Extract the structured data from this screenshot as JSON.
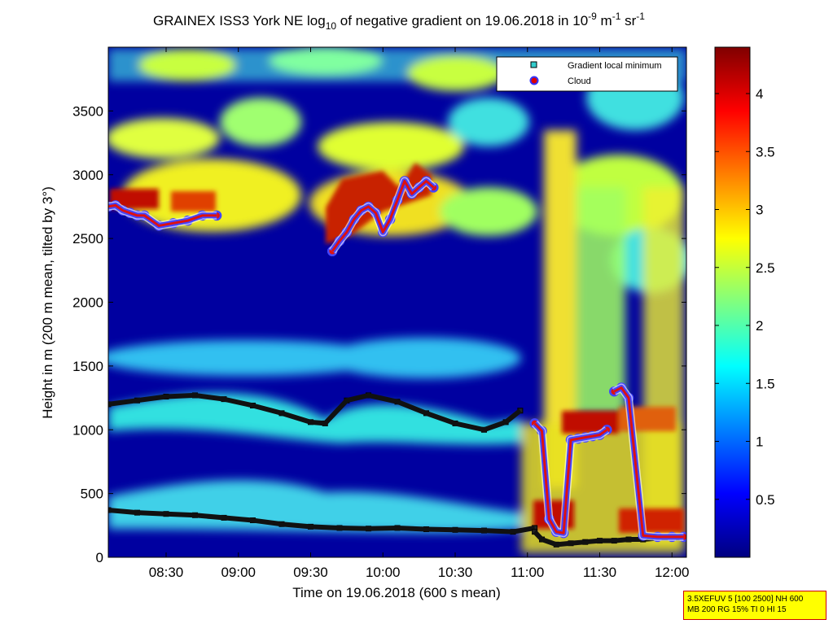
{
  "chart_data": {
    "type": "heatmap",
    "title": {
      "pre": "GRAINEX ISS3 York NE log",
      "sub": "10",
      "mid": " of negative gradient on 19.06.2018 in 10",
      "sup1": "-9",
      "unit1": " m",
      "sup2": "-1",
      "unit2": " sr",
      "sup3": "-1"
    },
    "xlabel": "Time on 19.06.2018 (600 s mean)",
    "ylabel": "Height in m (200 m mean, tilted by 3°)",
    "x_ticks": [
      "08:30",
      "09:00",
      "09:30",
      "10:00",
      "10:30",
      "11:00",
      "11:30",
      "12:00"
    ],
    "x_tick_hours": [
      8.5,
      9.0,
      9.5,
      10.0,
      10.5,
      11.0,
      11.5,
      12.0
    ],
    "xlim_hours": [
      8.1,
      12.1
    ],
    "y_ticks": [
      0,
      500,
      1000,
      1500,
      2000,
      2500,
      3000,
      3500
    ],
    "ylim": [
      0,
      4000
    ],
    "colorbar": {
      "ticks": [
        "0.5",
        "1",
        "1.5",
        "2",
        "2.5",
        "3",
        "3.5",
        "4"
      ],
      "tick_values": [
        0.5,
        1,
        1.5,
        2,
        2.5,
        3,
        3.5,
        4
      ],
      "range": [
        0,
        4.4
      ]
    },
    "legend": {
      "position": "top-right",
      "entries": [
        {
          "label": "Gradient local minimum",
          "marker": "square",
          "color": "#33cccc"
        },
        {
          "label": "Cloud",
          "marker": "circle",
          "color": "#cc0000"
        }
      ]
    },
    "series": [
      {
        "name": "Gradient local minimum",
        "x": [
          8.1,
          8.3,
          8.5,
          8.7,
          8.9,
          9.1,
          9.3,
          9.5,
          9.6,
          9.75,
          9.9,
          10.1,
          10.3,
          10.5,
          10.7,
          10.85,
          10.95
        ],
        "y": [
          1200,
          1230,
          1260,
          1270,
          1240,
          1190,
          1130,
          1060,
          1050,
          1230,
          1270,
          1220,
          1130,
          1050,
          1000,
          1060,
          1150
        ]
      },
      {
        "name": "Gradient local minimum",
        "x": [
          8.1,
          8.3,
          8.5,
          8.7,
          8.9,
          9.1,
          9.3,
          9.5,
          9.7,
          9.9,
          10.1,
          10.3,
          10.5,
          10.7,
          10.9,
          11.05
        ],
        "y": [
          370,
          350,
          340,
          330,
          310,
          290,
          260,
          240,
          230,
          225,
          230,
          220,
          215,
          210,
          200,
          230
        ]
      },
      {
        "name": "Gradient local minimum",
        "x": [
          11.05,
          11.1,
          11.2,
          11.3,
          11.4,
          11.5,
          11.6,
          11.7,
          11.8,
          11.9,
          12.0,
          12.08
        ],
        "y": [
          200,
          140,
          100,
          110,
          120,
          130,
          130,
          140,
          140,
          150,
          150,
          150
        ]
      },
      {
        "name": "Cloud",
        "x": [
          8.1,
          8.15,
          8.2,
          8.25,
          8.3,
          8.35,
          8.45,
          8.55,
          8.65,
          8.75,
          8.85
        ],
        "y": [
          2750,
          2760,
          2720,
          2700,
          2680,
          2680,
          2600,
          2620,
          2640,
          2680,
          2680
        ]
      },
      {
        "name": "Cloud",
        "x": [
          9.65,
          9.7,
          9.75,
          9.8,
          9.85,
          9.9,
          9.95,
          10.0,
          10.05,
          10.1,
          10.15,
          10.2,
          10.25,
          10.3,
          10.35
        ],
        "y": [
          2400,
          2480,
          2550,
          2650,
          2720,
          2750,
          2700,
          2550,
          2650,
          2800,
          2950,
          2850,
          2900,
          2950,
          2900
        ]
      },
      {
        "name": "Cloud",
        "x": [
          11.05,
          11.1,
          11.15,
          11.2,
          11.25,
          11.3,
          11.35,
          11.4,
          11.45,
          11.5,
          11.55
        ],
        "y": [
          1050,
          990,
          300,
          200,
          190,
          920,
          930,
          940,
          950,
          960,
          1000
        ]
      },
      {
        "name": "Cloud",
        "x": [
          11.6,
          11.65,
          11.7,
          11.8,
          11.9,
          12.0,
          12.08
        ],
        "y": [
          1300,
          1330,
          1250,
          170,
          160,
          160,
          160
        ]
      }
    ]
  },
  "info_box": {
    "line1": "3.5XEFUV 5 [100 2500] NH 600",
    "line2": "MB 200 RG 15% TI 0 HI 15"
  }
}
